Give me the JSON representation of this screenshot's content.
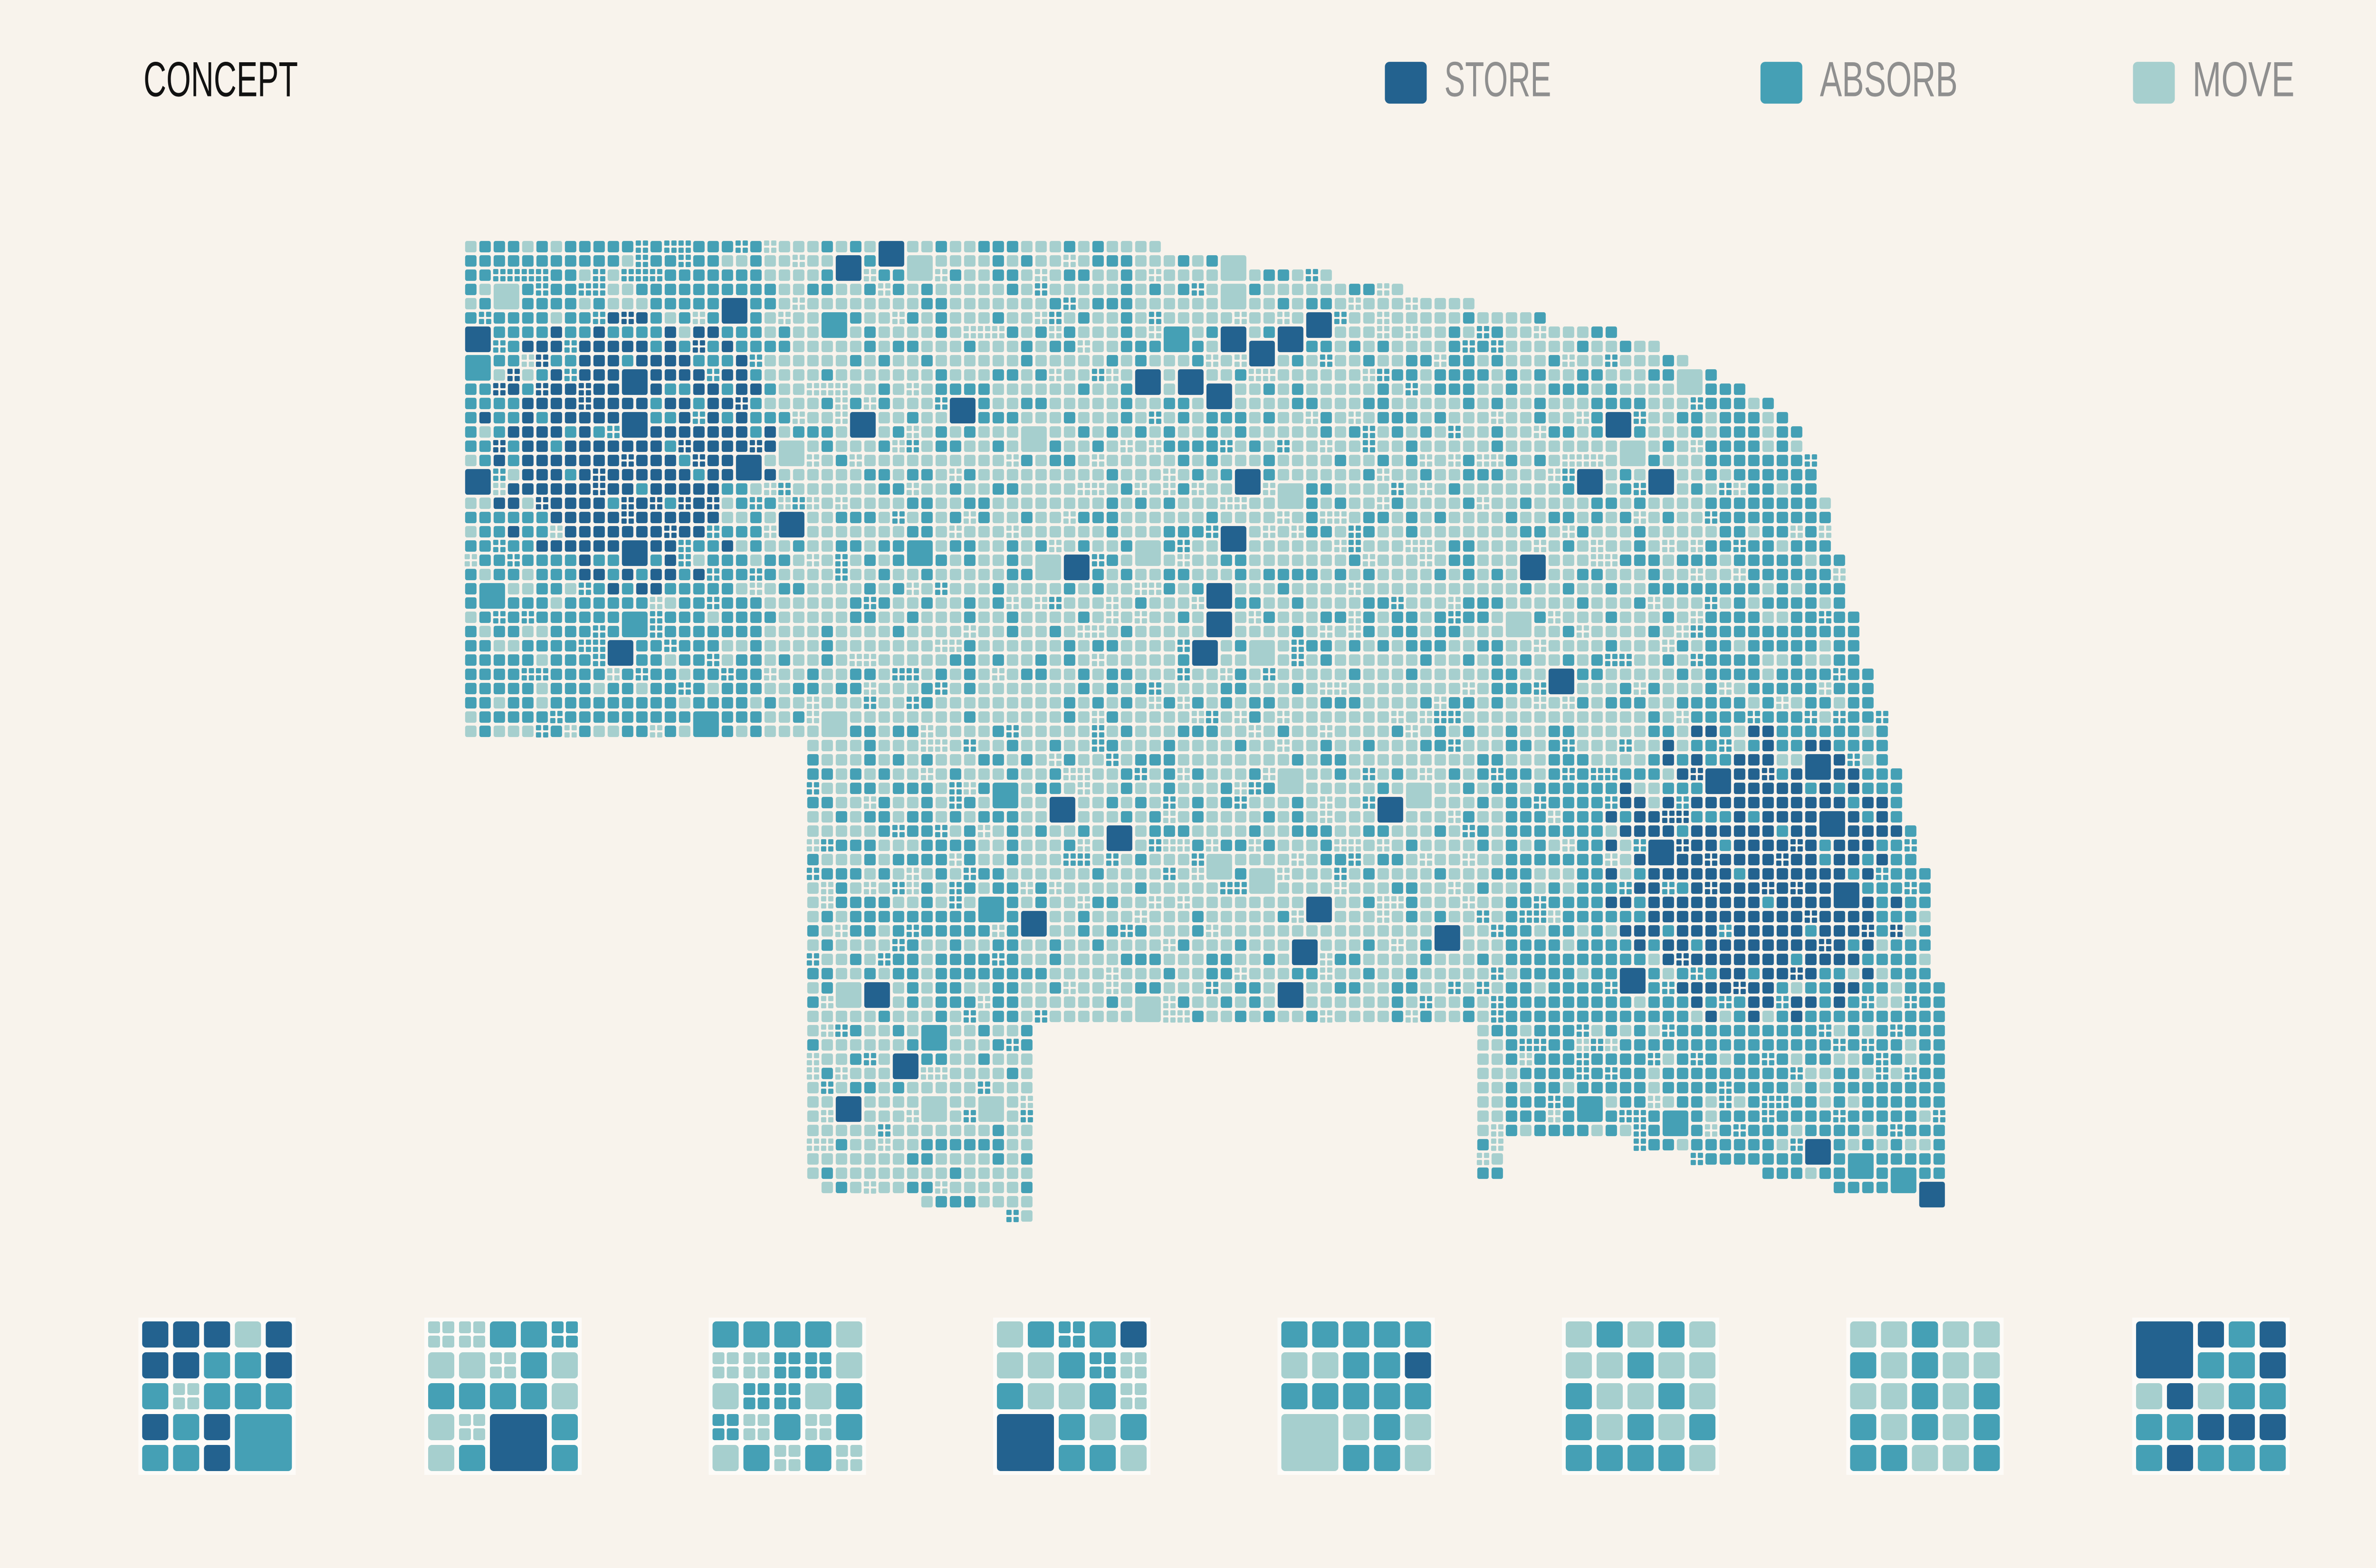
{
  "header": {
    "title": "CONCEPT"
  },
  "legend": [
    {
      "label": "STORE",
      "color": "#23628f"
    },
    {
      "label": "ABSORB",
      "color": "#45a0b5"
    },
    {
      "label": "MOVE",
      "color": "#a6cfce"
    }
  ]
}
